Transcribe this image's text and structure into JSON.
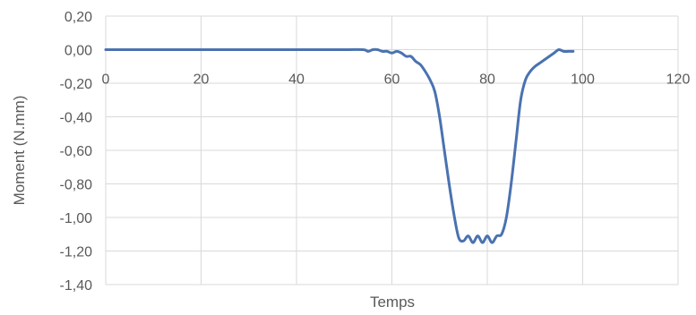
{
  "chart_data": {
    "type": "line",
    "title": "",
    "xlabel": "Temps",
    "ylabel": "Moment (N.mm)",
    "xlim": [
      0,
      120
    ],
    "ylim": [
      -1.4,
      0.2
    ],
    "x_ticks": [
      0,
      20,
      40,
      60,
      80,
      100,
      120
    ],
    "y_ticks": [
      0.2,
      0.0,
      -0.2,
      -0.4,
      -0.6,
      -0.8,
      -1.0,
      -1.2,
      -1.4
    ],
    "x_tick_labels": [
      "0",
      "20",
      "40",
      "60",
      "80",
      "100",
      "120"
    ],
    "y_tick_labels": [
      "0,20",
      "0,00",
      "-0,20",
      "-0,40",
      "-0,60",
      "-0,80",
      "-1,00",
      "-1,20",
      "-1,40"
    ],
    "grid": true,
    "legend": "none",
    "series": [
      {
        "color": "#4a72b0",
        "x": [
          0,
          10,
          20,
          30,
          40,
          50,
          54,
          55,
          56,
          57,
          58,
          59,
          60,
          61,
          62,
          63,
          64,
          65,
          66,
          67,
          68,
          69,
          70,
          71,
          72,
          73,
          74,
          75,
          76,
          77,
          78,
          79,
          80,
          81,
          82,
          83,
          84,
          85,
          86,
          87,
          88,
          89,
          90,
          91,
          92,
          93,
          94,
          95,
          96,
          97,
          98
        ],
        "y": [
          0,
          0,
          0,
          0,
          0,
          0,
          0,
          -0.01,
          0,
          0,
          -0.01,
          -0.01,
          -0.02,
          -0.01,
          -0.02,
          -0.04,
          -0.04,
          -0.07,
          -0.09,
          -0.13,
          -0.18,
          -0.25,
          -0.4,
          -0.6,
          -0.8,
          -0.98,
          -1.12,
          -1.14,
          -1.11,
          -1.15,
          -1.11,
          -1.15,
          -1.11,
          -1.15,
          -1.11,
          -1.1,
          -1.0,
          -0.8,
          -0.55,
          -0.3,
          -0.18,
          -0.13,
          -0.1,
          -0.08,
          -0.06,
          -0.04,
          -0.02,
          0,
          -0.01,
          -0.01,
          -0.01
        ]
      }
    ]
  }
}
